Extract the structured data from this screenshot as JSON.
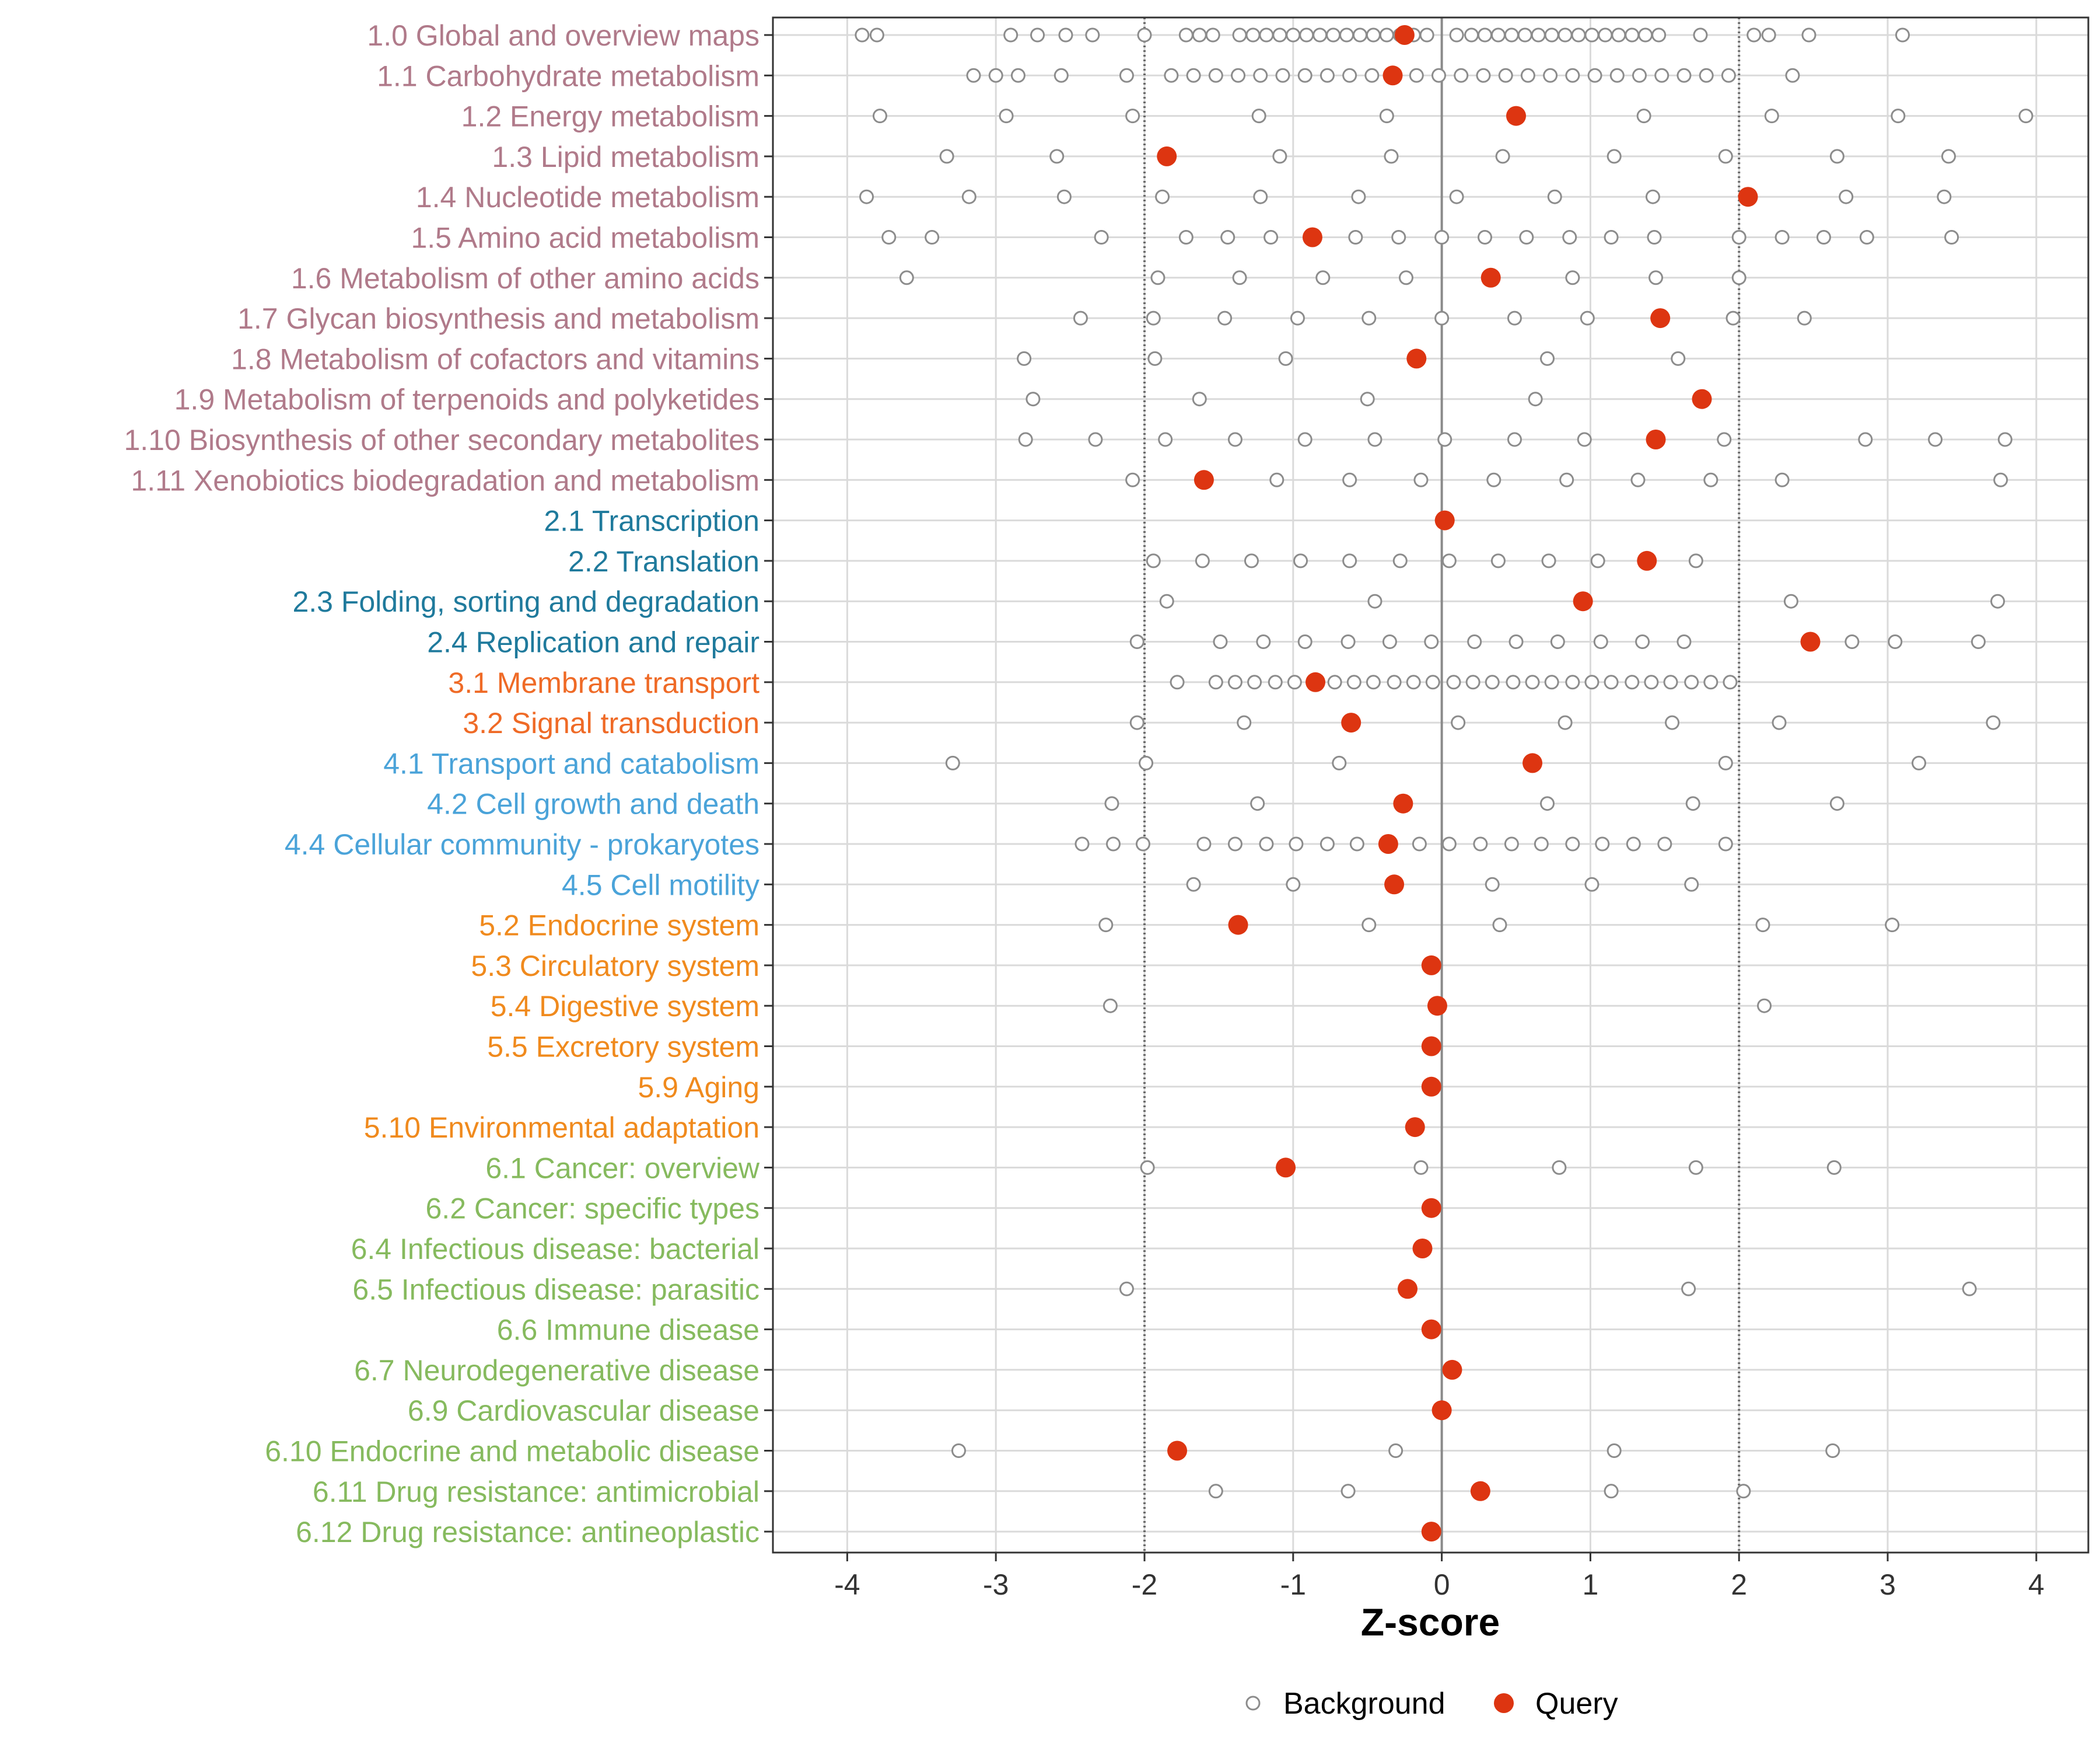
{
  "chart_data": {
    "type": "scatter",
    "title": "",
    "xlabel": "Z-score",
    "ylabel": "",
    "xlim": [
      -4.5,
      4.35
    ],
    "x_ticks": [
      -4,
      -3,
      -2,
      -1,
      0,
      1,
      2,
      3,
      4
    ],
    "x_tick_labels": [
      "-4",
      "-3",
      "-2",
      "-1",
      "0",
      "1",
      "2",
      "3",
      "4"
    ],
    "reference_lines": [
      -2,
      0,
      2
    ],
    "grid": true,
    "legend": {
      "position": "bottom",
      "entries": [
        {
          "name": "Background",
          "style": "hollow-circle",
          "color": "#8c8c8c"
        },
        {
          "name": "Query",
          "style": "filled-circle",
          "color": "#dd3511"
        }
      ]
    },
    "group_colors": {
      "1": "#b07a8a",
      "2": "#1f7a9c",
      "3": "#ef6a26",
      "4": "#4aa3d9",
      "5": "#f08a1d",
      "6": "#86ba5e"
    },
    "categories": [
      {
        "label": "1.0 Global and overview maps",
        "group": "1",
        "query": -0.25,
        "background": [
          -3.9,
          -3.8,
          -2.9,
          -2.72,
          -2.53,
          -2.35,
          -2.0,
          -1.72,
          -1.63,
          -1.54,
          -1.36,
          -1.27,
          -1.18,
          -1.09,
          -1.0,
          -0.91,
          -0.82,
          -0.73,
          -0.64,
          -0.55,
          -0.46,
          -0.37,
          -0.28,
          -0.19,
          -0.1,
          0.1,
          0.2,
          0.29,
          0.38,
          0.47,
          0.56,
          0.65,
          0.74,
          0.83,
          0.92,
          1.01,
          1.1,
          1.19,
          1.28,
          1.37,
          1.46,
          1.74,
          2.1,
          2.2,
          2.47,
          3.1
        ]
      },
      {
        "label": "1.1 Carbohydrate metabolism",
        "group": "1",
        "query": -0.33,
        "background": [
          -3.15,
          -3.0,
          -2.85,
          -2.56,
          -2.12,
          -1.82,
          -1.67,
          -1.52,
          -1.37,
          -1.22,
          -1.07,
          -0.92,
          -0.77,
          -0.62,
          -0.47,
          -0.17,
          -0.02,
          0.13,
          0.28,
          0.43,
          0.58,
          0.73,
          0.88,
          1.03,
          1.18,
          1.33,
          1.48,
          1.63,
          1.78,
          1.93,
          2.36
        ]
      },
      {
        "label": "1.2 Energy metabolism",
        "group": "1",
        "query": 0.5,
        "background": [
          -3.78,
          -2.93,
          -2.08,
          -1.23,
          -0.37,
          1.36,
          2.22,
          3.07,
          3.93
        ]
      },
      {
        "label": "1.3 Lipid metabolism",
        "group": "1",
        "query": -1.85,
        "background": [
          -3.33,
          -2.59,
          -1.09,
          -0.34,
          0.41,
          1.16,
          1.91,
          2.66,
          3.41
        ]
      },
      {
        "label": "1.4 Nucleotide metabolism",
        "group": "1",
        "query": 2.06,
        "background": [
          -3.87,
          -3.18,
          -2.54,
          -1.88,
          -1.22,
          -0.56,
          0.1,
          0.76,
          1.42,
          2.72,
          3.38
        ]
      },
      {
        "label": "1.5 Amino acid metabolism",
        "group": "1",
        "query": -0.87,
        "background": [
          -3.72,
          -3.43,
          -2.29,
          -1.72,
          -1.44,
          -1.15,
          -0.58,
          -0.29,
          0.0,
          0.29,
          0.57,
          0.86,
          1.14,
          1.43,
          2.0,
          2.29,
          2.57,
          2.86,
          3.43
        ]
      },
      {
        "label": "1.6 Metabolism of other amino acids",
        "group": "1",
        "query": 0.33,
        "background": [
          -3.6,
          -1.91,
          -1.36,
          -0.8,
          -0.24,
          0.88,
          1.44,
          2.0
        ]
      },
      {
        "label": "1.7 Glycan biosynthesis and metabolism",
        "group": "1",
        "query": 1.47,
        "background": [
          -2.43,
          -1.94,
          -1.46,
          -0.97,
          -0.49,
          0.0,
          0.49,
          0.98,
          1.96,
          2.44
        ]
      },
      {
        "label": "1.8 Metabolism of cofactors and vitamins",
        "group": "1",
        "query": -0.17,
        "background": [
          -2.81,
          -1.93,
          -1.05,
          0.71,
          1.59
        ]
      },
      {
        "label": "1.9 Metabolism of terpenoids and polyketides",
        "group": "1",
        "query": 1.75,
        "background": [
          -2.75,
          -1.63,
          -0.5,
          0.63
        ]
      },
      {
        "label": "1.10 Biosynthesis of other secondary metabolites",
        "group": "1",
        "query": 1.44,
        "background": [
          -2.8,
          -2.33,
          -1.86,
          -1.39,
          -0.92,
          -0.45,
          0.02,
          0.49,
          0.96,
          1.9,
          2.85,
          3.32,
          3.79
        ]
      },
      {
        "label": "1.11 Xenobiotics biodegradation and metabolism",
        "group": "1",
        "query": -1.6,
        "background": [
          -2.08,
          -1.11,
          -0.62,
          -0.14,
          0.35,
          0.84,
          1.32,
          1.81,
          2.29,
          3.76
        ]
      },
      {
        "label": "2.1 Transcription",
        "group": "2",
        "query": 0.02,
        "background": []
      },
      {
        "label": "2.2 Translation",
        "group": "2",
        "query": 1.38,
        "background": [
          -1.94,
          -1.61,
          -1.28,
          -0.95,
          -0.62,
          -0.28,
          0.05,
          0.38,
          0.72,
          1.05,
          1.71
        ]
      },
      {
        "label": "2.3 Folding, sorting and degradation",
        "group": "2",
        "query": 0.95,
        "background": [
          -1.85,
          -0.45,
          2.35,
          3.74
        ]
      },
      {
        "label": "2.4 Replication and repair",
        "group": "2",
        "query": 2.48,
        "background": [
          -2.05,
          -1.49,
          -1.2,
          -0.92,
          -0.63,
          -0.35,
          -0.07,
          0.22,
          0.5,
          0.78,
          1.07,
          1.35,
          1.63,
          2.76,
          3.05,
          3.61
        ]
      },
      {
        "label": "3.1 Membrane transport",
        "group": "3",
        "query": -0.85,
        "background": [
          -1.78,
          -1.52,
          -1.39,
          -1.26,
          -1.12,
          -0.99,
          -0.72,
          -0.59,
          -0.46,
          -0.32,
          -0.19,
          -0.06,
          0.08,
          0.21,
          0.34,
          0.48,
          0.61,
          0.74,
          0.88,
          1.01,
          1.14,
          1.28,
          1.41,
          1.54,
          1.68,
          1.81,
          1.94
        ]
      },
      {
        "label": "3.2 Signal transduction",
        "group": "3",
        "query": -0.61,
        "background": [
          -2.05,
          -1.33,
          0.11,
          0.83,
          1.55,
          2.27,
          3.71
        ]
      },
      {
        "label": "4.1 Transport and catabolism",
        "group": "4",
        "query": 0.61,
        "background": [
          -3.29,
          -1.99,
          -0.69,
          1.91,
          3.21
        ]
      },
      {
        "label": "4.2 Cell growth and death",
        "group": "4",
        "query": -0.26,
        "background": [
          -2.22,
          -1.24,
          0.71,
          1.69,
          2.66
        ]
      },
      {
        "label": "4.4 Cellular community - prokaryotes",
        "group": "4",
        "query": -0.36,
        "background": [
          -2.42,
          -2.21,
          -2.01,
          -1.6,
          -1.39,
          -1.18,
          -0.98,
          -0.77,
          -0.57,
          -0.15,
          0.05,
          0.26,
          0.47,
          0.67,
          0.88,
          1.08,
          1.29,
          1.5,
          1.91
        ]
      },
      {
        "label": "4.5 Cell motility",
        "group": "4",
        "query": -0.32,
        "background": [
          -1.67,
          -1.0,
          0.34,
          1.01,
          1.68
        ]
      },
      {
        "label": "5.2 Endocrine system",
        "group": "5",
        "query": -1.37,
        "background": [
          -2.26,
          -0.49,
          0.39,
          2.16,
          3.03
        ]
      },
      {
        "label": "5.3 Circulatory system",
        "group": "5",
        "query": -0.07,
        "background": []
      },
      {
        "label": "5.4 Digestive system",
        "group": "5",
        "query": -0.03,
        "background": [
          -2.23,
          2.17
        ]
      },
      {
        "label": "5.5 Excretory system",
        "group": "5",
        "query": -0.07,
        "background": []
      },
      {
        "label": "5.9 Aging",
        "group": "5",
        "query": -0.07,
        "background": []
      },
      {
        "label": "5.10 Environmental adaptation",
        "group": "5",
        "query": -0.18,
        "background": []
      },
      {
        "label": "6.1 Cancer: overview",
        "group": "6",
        "query": -1.05,
        "background": [
          -1.98,
          -0.14,
          0.79,
          1.71,
          2.64
        ]
      },
      {
        "label": "6.2 Cancer: specific types",
        "group": "6",
        "query": -0.07,
        "background": []
      },
      {
        "label": "6.4 Infectious disease: bacterial",
        "group": "6",
        "query": -0.13,
        "background": []
      },
      {
        "label": "6.5 Infectious disease: parasitic",
        "group": "6",
        "query": -0.23,
        "background": [
          -2.12,
          1.66,
          3.55
        ]
      },
      {
        "label": "6.6 Immune disease",
        "group": "6",
        "query": -0.07,
        "background": []
      },
      {
        "label": "6.7 Neurodegenerative disease",
        "group": "6",
        "query": 0.07,
        "background": []
      },
      {
        "label": "6.9 Cardiovascular disease",
        "group": "6",
        "query": 0.0,
        "background": []
      },
      {
        "label": "6.10 Endocrine and metabolic disease",
        "group": "6",
        "query": -1.78,
        "background": [
          -3.25,
          -0.31,
          1.16,
          2.63
        ]
      },
      {
        "label": "6.11 Drug resistance: antimicrobial",
        "group": "6",
        "query": 0.26,
        "background": [
          -1.52,
          -0.63,
          1.14,
          2.03
        ]
      },
      {
        "label": "6.12 Drug resistance: antineoplastic",
        "group": "6",
        "query": -0.07,
        "background": []
      }
    ]
  }
}
